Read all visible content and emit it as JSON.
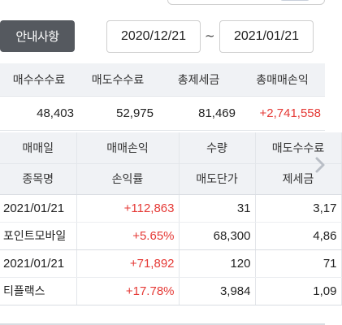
{
  "top": {
    "notice_label": "안내사항",
    "date_start": "2020/12/21",
    "date_separator": "~",
    "date_end": "2021/01/21"
  },
  "summary": {
    "headers": [
      "매수수수료",
      "매도수수료",
      "총제세금",
      "총매매손익"
    ],
    "values": [
      "48,403",
      "52,975",
      "81,469",
      "+2,741,558"
    ]
  },
  "detail": {
    "header_row1": [
      "매매일",
      "매매손익",
      "수량",
      "매도수수료"
    ],
    "header_row2": [
      "종목명",
      "손익률",
      "매도단가",
      "제세금"
    ],
    "rows": [
      {
        "date": "2021/01/21",
        "profit": "+112,863",
        "qty": "31",
        "fee": "3,17",
        "name": "포인트모바일",
        "rate": "+5.65%",
        "price": "68,300",
        "tax": "4,86"
      },
      {
        "date": "2021/01/21",
        "profit": "+71,892",
        "qty": "120",
        "fee": "71",
        "name": "티플랙스",
        "rate": "+17.78%",
        "price": "3,984",
        "tax": "1,09"
      }
    ]
  },
  "icons": {
    "scroll_right": "chevron-right-icon"
  },
  "colors": {
    "profit_red": "#e53935",
    "header_bg": "#f0f2f5",
    "button_bg": "#55595f"
  }
}
